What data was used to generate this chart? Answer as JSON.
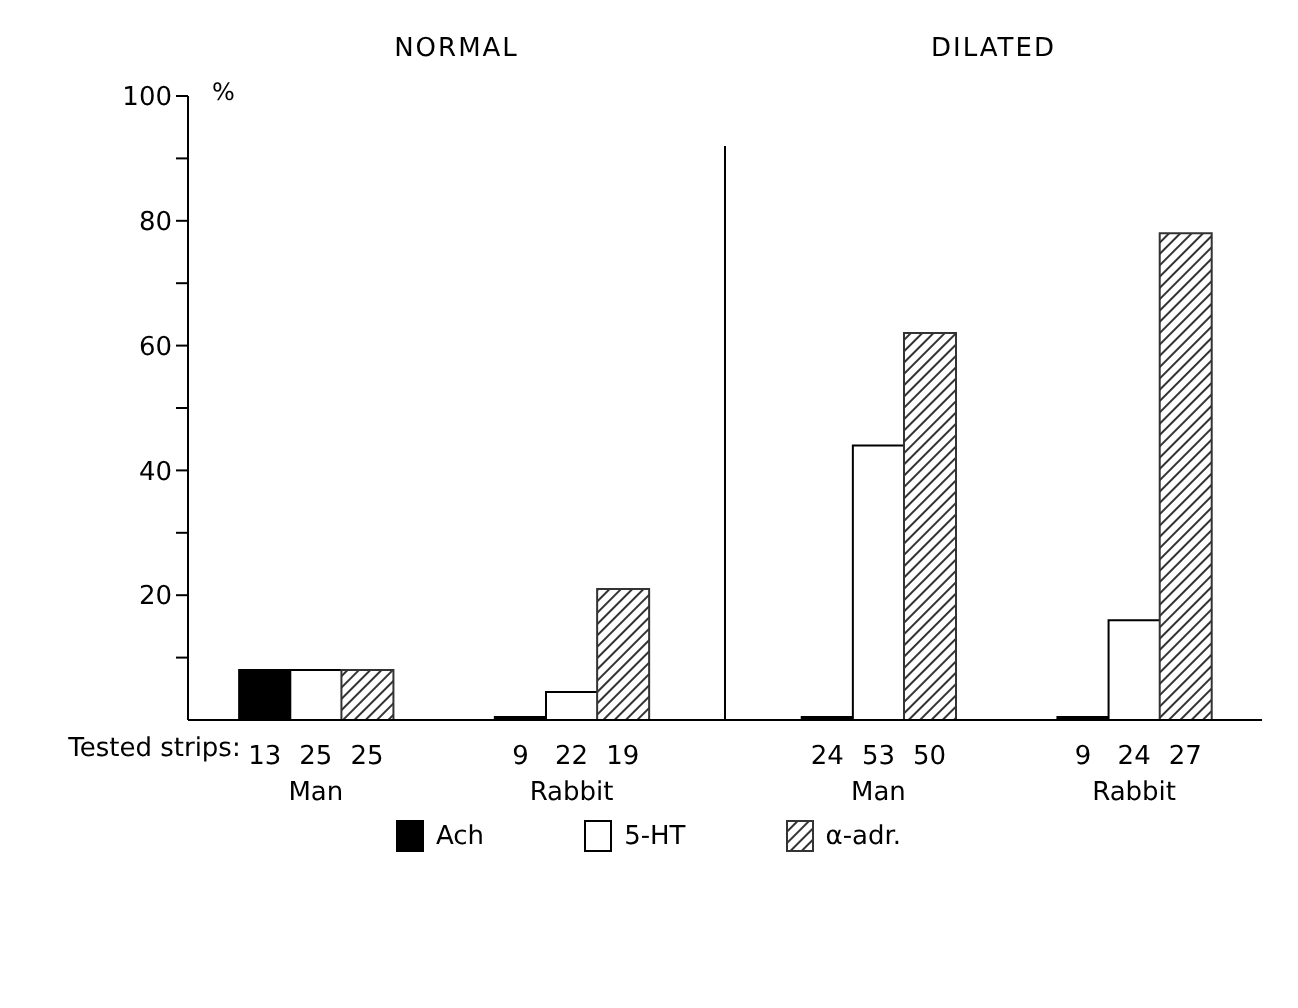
{
  "chart_data": {
    "type": "bar",
    "ylabel": "%",
    "categories": [
      null,
      "13",
      "25",
      "25",
      null,
      null,
      "9",
      "22",
      "19",
      null,
      null,
      null,
      "24",
      "53",
      "50",
      null,
      null,
      "9",
      "24",
      "27",
      null
    ],
    "series": [
      {
        "name": "Ach",
        "color": "#000000",
        "values": [
          null,
          8,
          null,
          null,
          null,
          null,
          0.5,
          null,
          null,
          null,
          null,
          null,
          0.5,
          null,
          null,
          null,
          null,
          0.5,
          null,
          null,
          null
        ]
      },
      {
        "name": "5-HT",
        "color": "#ffffff",
        "values": [
          null,
          null,
          8,
          null,
          null,
          null,
          null,
          4.5,
          null,
          null,
          null,
          null,
          null,
          44,
          null,
          null,
          null,
          null,
          16,
          null,
          null
        ]
      },
      {
        "name": "α-adr.",
        "color": "#333333",
        "values": [
          null,
          null,
          null,
          8,
          null,
          null,
          null,
          null,
          21,
          null,
          null,
          null,
          null,
          null,
          62,
          null,
          null,
          null,
          null,
          78,
          null
        ]
      }
    ],
    "annotations": [
      "NORMAL",
      "DILATED",
      "Tested strips:",
      "Man",
      "Rabbit",
      "Man",
      "Rabbit"
    ],
    "ylim": [
      0,
      100
    ],
    "yticks": [
      {
        "value": 10,
        "label": null
      },
      20,
      {
        "value": 30,
        "label": null
      },
      40,
      {
        "value": 50,
        "label": null
      },
      60,
      {
        "value": 70,
        "label": null
      },
      80,
      {
        "value": 90,
        "label": null
      },
      100
    ],
    "legend": "bottom left"
  }
}
